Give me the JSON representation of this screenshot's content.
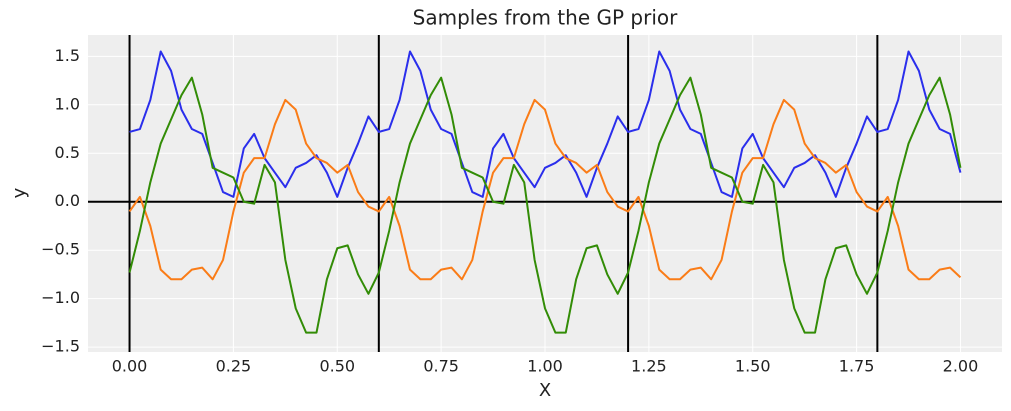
{
  "chart_data": {
    "type": "line",
    "title": "Samples from the GP prior",
    "x_label": "X",
    "y_label": "y",
    "x": [
      0,
      0.025,
      0.05,
      0.075,
      0.1,
      0.125,
      0.15,
      0.175,
      0.2,
      0.225,
      0.25,
      0.275,
      0.3,
      0.325,
      0.35,
      0.375,
      0.4,
      0.425,
      0.45,
      0.475,
      0.5,
      0.525,
      0.55,
      0.575,
      0.6,
      0.625,
      0.65,
      0.675,
      0.7,
      0.725,
      0.75,
      0.775,
      0.8,
      0.825,
      0.85,
      0.875,
      0.9,
      0.925,
      0.95,
      0.975,
      1.0,
      1.025,
      1.05,
      1.075,
      1.1,
      1.125,
      1.15,
      1.175,
      1.2,
      1.225,
      1.25,
      1.275,
      1.3,
      1.325,
      1.35,
      1.375,
      1.4,
      1.425,
      1.45,
      1.475,
      1.5,
      1.525,
      1.55,
      1.575,
      1.6,
      1.625,
      1.65,
      1.675,
      1.7,
      1.725,
      1.75,
      1.775,
      1.8,
      1.825,
      1.85,
      1.875,
      1.9,
      1.925,
      1.95,
      1.975,
      2.0
    ],
    "series": [
      {
        "color": "#2a2eec",
        "values": [
          0.72,
          0.75,
          1.05,
          1.55,
          1.35,
          0.95,
          0.75,
          0.7,
          0.4,
          0.1,
          0.05,
          0.55,
          0.7,
          0.45,
          0.3,
          0.15,
          0.35,
          0.4,
          0.48,
          0.3,
          0.05,
          0.35,
          0.6,
          0.88,
          0.72,
          0.75,
          1.05,
          1.55,
          1.35,
          0.95,
          0.75,
          0.7,
          0.4,
          0.1,
          0.05,
          0.55,
          0.7,
          0.45,
          0.3,
          0.15,
          0.35,
          0.4,
          0.48,
          0.3,
          0.05,
          0.35,
          0.6,
          0.88,
          0.72,
          0.75,
          1.05,
          1.55,
          1.35,
          0.95,
          0.75,
          0.7,
          0.4,
          0.1,
          0.05,
          0.55,
          0.7,
          0.45,
          0.3,
          0.15,
          0.35,
          0.4,
          0.48,
          0.3,
          0.05,
          0.35,
          0.6,
          0.88,
          0.72,
          0.75,
          1.05,
          1.55,
          1.35,
          0.95,
          0.75,
          0.7,
          0.3
        ]
      },
      {
        "color": "#fa7c17",
        "values": [
          -0.1,
          0.05,
          -0.25,
          -0.7,
          -0.8,
          -0.8,
          -0.7,
          -0.68,
          -0.8,
          -0.6,
          -0.1,
          0.3,
          0.45,
          0.45,
          0.8,
          1.05,
          0.95,
          0.6,
          0.45,
          0.4,
          0.3,
          0.38,
          0.1,
          -0.05,
          -0.1,
          0.05,
          -0.25,
          -0.7,
          -0.8,
          -0.8,
          -0.7,
          -0.68,
          -0.8,
          -0.6,
          -0.1,
          0.3,
          0.45,
          0.45,
          0.8,
          1.05,
          0.95,
          0.6,
          0.45,
          0.4,
          0.3,
          0.38,
          0.1,
          -0.05,
          -0.1,
          0.05,
          -0.25,
          -0.7,
          -0.8,
          -0.8,
          -0.7,
          -0.68,
          -0.8,
          -0.6,
          -0.1,
          0.3,
          0.45,
          0.45,
          0.8,
          1.05,
          0.95,
          0.6,
          0.45,
          0.4,
          0.3,
          0.38,
          0.1,
          -0.05,
          -0.1,
          0.05,
          -0.25,
          -0.7,
          -0.8,
          -0.8,
          -0.7,
          -0.68,
          -0.78
        ]
      },
      {
        "color": "#328c06",
        "values": [
          -0.73,
          -0.3,
          0.2,
          0.6,
          0.85,
          1.1,
          1.28,
          0.9,
          0.35,
          0.3,
          0.25,
          0.0,
          -0.02,
          0.38,
          0.2,
          -0.6,
          -1.1,
          -1.35,
          -1.35,
          -0.8,
          -0.48,
          -0.45,
          -0.75,
          -0.95,
          -0.73,
          -0.3,
          0.2,
          0.6,
          0.85,
          1.1,
          1.28,
          0.9,
          0.35,
          0.3,
          0.25,
          0.0,
          -0.02,
          0.38,
          0.2,
          -0.6,
          -1.1,
          -1.35,
          -1.35,
          -0.8,
          -0.48,
          -0.45,
          -0.75,
          -0.95,
          -0.73,
          -0.3,
          0.2,
          0.6,
          0.85,
          1.1,
          1.28,
          0.9,
          0.35,
          0.3,
          0.25,
          0.0,
          -0.02,
          0.38,
          0.2,
          -0.6,
          -1.1,
          -1.35,
          -1.35,
          -0.8,
          -0.48,
          -0.45,
          -0.75,
          -0.95,
          -0.73,
          -0.3,
          0.2,
          0.6,
          0.85,
          1.1,
          1.28,
          0.9,
          0.35
        ]
      }
    ],
    "vlines": [
      0,
      0.6,
      1.2,
      1.8
    ],
    "hlines": [
      0
    ],
    "xlim": [
      -0.1,
      2.1
    ],
    "ylim": [
      -1.55,
      1.72
    ],
    "xticks": [
      {
        "value": 0,
        "label": "0.00"
      },
      {
        "value": 0.25,
        "label": "0.25"
      },
      {
        "value": 0.5,
        "label": "0.50"
      },
      {
        "value": 0.75,
        "label": "0.75"
      },
      {
        "value": 1,
        "label": "1.00"
      },
      {
        "value": 1.25,
        "label": "1.25"
      },
      {
        "value": 1.5,
        "label": "1.50"
      },
      {
        "value": 1.75,
        "label": "1.75"
      },
      {
        "value": 2,
        "label": "2.00"
      }
    ],
    "yticks": [
      {
        "value": -1.5,
        "label": "−1.5"
      },
      {
        "value": -1,
        "label": "−1.0"
      },
      {
        "value": -0.5,
        "label": "−0.5"
      },
      {
        "value": 0,
        "label": "0.0"
      },
      {
        "value": 0.5,
        "label": "0.5"
      },
      {
        "value": 1,
        "label": "1.0"
      },
      {
        "value": 1.5,
        "label": "1.5"
      }
    ],
    "grid": true
  }
}
